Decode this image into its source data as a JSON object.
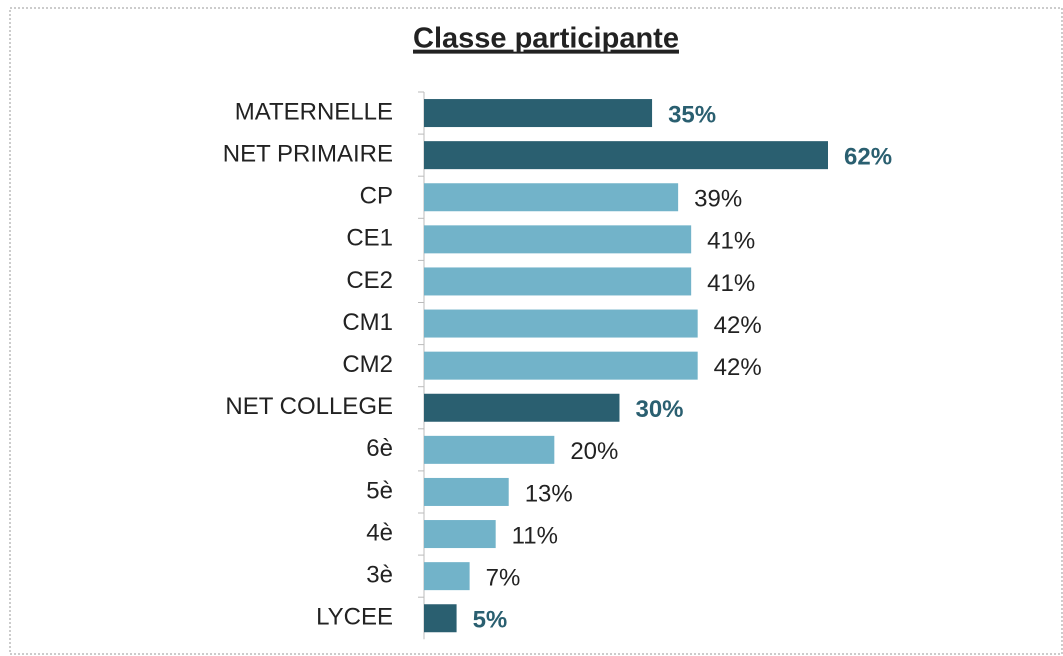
{
  "chart_data": {
    "type": "bar",
    "orientation": "horizontal",
    "title": "Classe participante",
    "categories": [
      "MATERNELLE",
      "NET PRIMAIRE",
      "CP",
      "CE1",
      "CE2",
      "CM1",
      "CM2",
      "NET COLLEGE",
      "6è",
      "5è",
      "4è",
      "3è",
      "LYCEE"
    ],
    "values": [
      35,
      62,
      39,
      41,
      41,
      42,
      42,
      30,
      20,
      13,
      11,
      7,
      5
    ],
    "value_labels": [
      "35%",
      "62%",
      "39%",
      "41%",
      "41%",
      "42%",
      "42%",
      "30%",
      "20%",
      "13%",
      "11%",
      "7%",
      "5%"
    ],
    "colors": [
      "#2a5f70",
      "#2a5f70",
      "#72b3c9",
      "#72b3c9",
      "#72b3c9",
      "#72b3c9",
      "#72b3c9",
      "#2a5f70",
      "#72b3c9",
      "#72b3c9",
      "#72b3c9",
      "#72b3c9",
      "#2a5f70"
    ],
    "bold_labels": [
      true,
      true,
      false,
      false,
      false,
      false,
      false,
      true,
      false,
      false,
      false,
      false,
      true
    ],
    "grid": false
  }
}
